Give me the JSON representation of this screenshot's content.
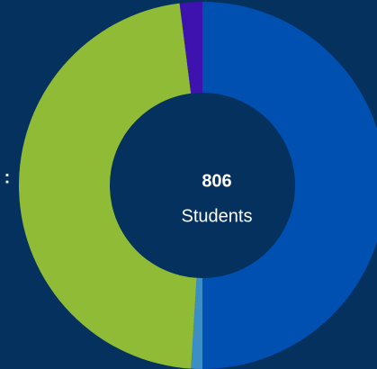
{
  "chart_data": {
    "type": "donut",
    "side_label": ":",
    "center_value": "806",
    "center_label": "Students",
    "categories": [
      null,
      null,
      null,
      null
    ],
    "values": [
      403,
      8,
      379,
      16
    ],
    "colors": [
      "#0050b2",
      "#3b8fc6",
      "#8fbb36",
      "#3e12ae"
    ]
  }
}
